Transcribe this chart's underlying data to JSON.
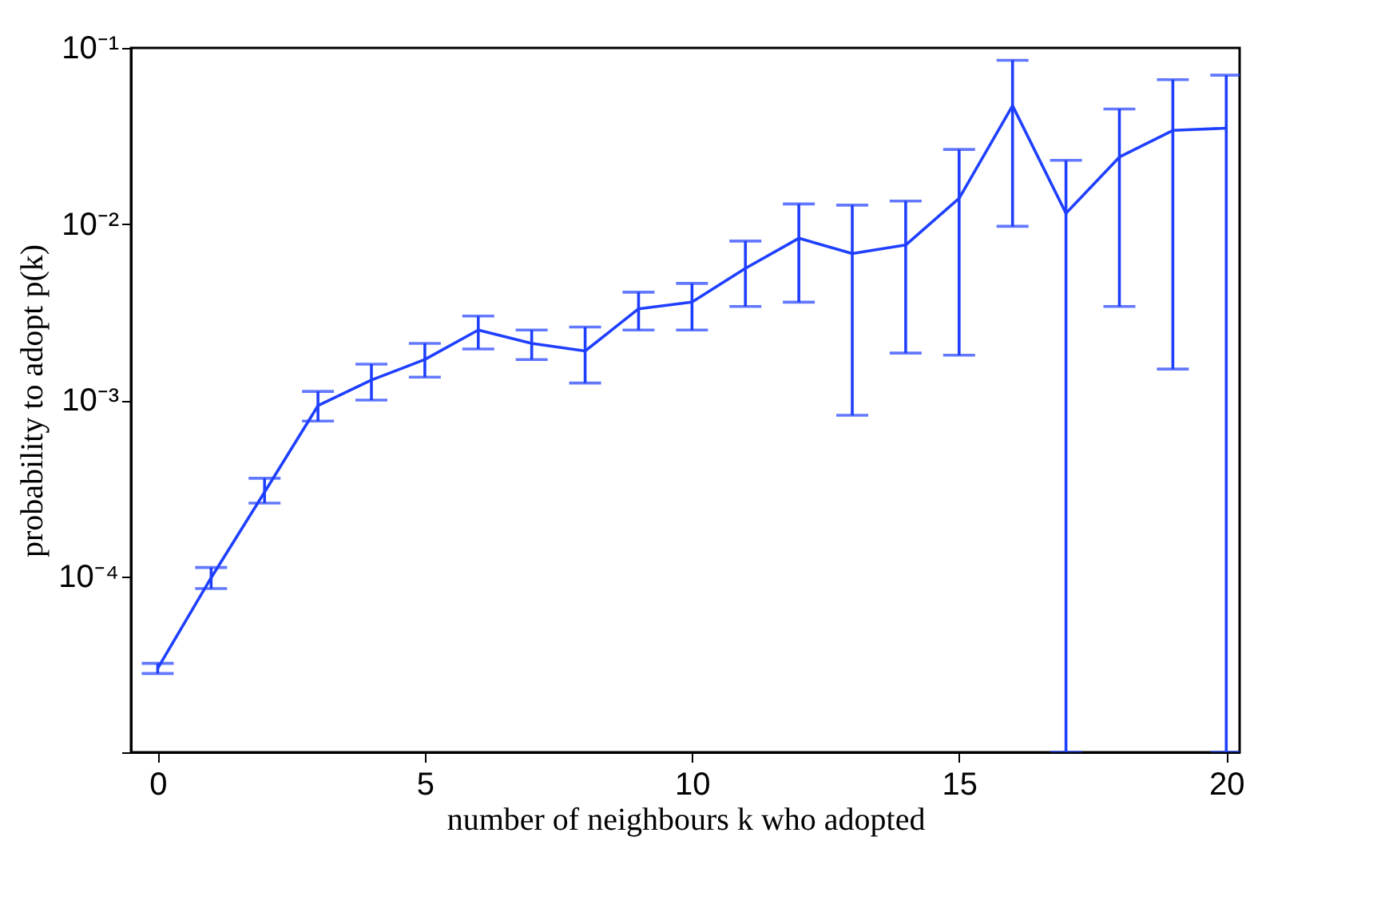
{
  "chart_data": {
    "type": "line",
    "xlabel": "number of neighbours k who adopted",
    "ylabel": "probability to adopt p(k)",
    "x": [
      0,
      1,
      2,
      3,
      4,
      5,
      6,
      7,
      8,
      9,
      10,
      11,
      12,
      13,
      14,
      15,
      16,
      17,
      18,
      19,
      20
    ],
    "series": [
      {
        "color": "#1f3fff",
        "values": [
          3e-05,
          9.8e-05,
          0.0003,
          0.00093,
          0.0013,
          0.0017,
          0.0025,
          0.0021,
          0.0019,
          0.0033,
          0.0036,
          0.0056,
          0.0083,
          0.0068,
          0.0076,
          0.014,
          0.047,
          0.0115,
          0.024,
          0.034,
          0.035
        ],
        "errors": [
          [
            2.8e-05,
            3.2e-05
          ],
          [
            8.5e-05,
            0.000112
          ],
          [
            0.00026,
            0.00036
          ],
          [
            0.00076,
            0.00112
          ],
          [
            0.001,
            0.0016
          ],
          [
            0.00135,
            0.0021
          ],
          [
            0.00195,
            0.003
          ],
          [
            0.0017,
            0.0025
          ],
          [
            0.00125,
            0.0026
          ],
          [
            0.0025,
            0.0041
          ],
          [
            0.0025,
            0.0046
          ],
          [
            0.0034,
            0.008
          ],
          [
            0.0036,
            0.013
          ],
          [
            0.00082,
            0.0128
          ],
          [
            0.00185,
            0.0135
          ],
          [
            0.0018,
            0.0265
          ],
          [
            0.0097,
            0.085
          ],
          [
            1e-05,
            0.023
          ],
          [
            0.0034,
            0.045
          ],
          [
            0.0015,
            0.066
          ],
          [
            1e-05,
            0.07
          ]
        ]
      }
    ],
    "log": "y",
    "xlim": [
      -0.5,
      20.25
    ],
    "xticks": [
      0,
      5,
      10,
      15,
      20
    ],
    "ylim": [
      1e-05,
      0.1
    ],
    "yticks": [
      {
        "value": 1e-05,
        "label": null
      },
      {
        "value": 0.0001,
        "label": "10⁻⁴"
      },
      {
        "value": 0.001,
        "label": "10⁻³"
      },
      {
        "value": 0.01,
        "label": "10⁻²"
      },
      {
        "value": 0.1,
        "label": "10⁻¹"
      }
    ],
    "grid": false,
    "marker": "none",
    "line_style": "solid"
  }
}
